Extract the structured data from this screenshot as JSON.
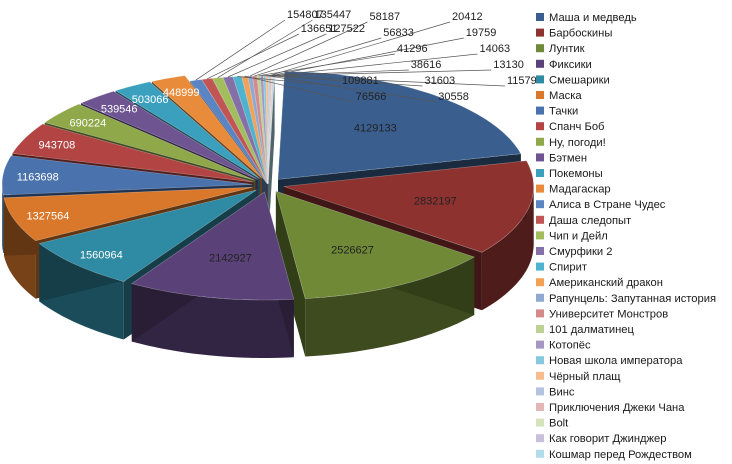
{
  "chart_data": {
    "type": "pie",
    "title": "",
    "legend_position": "right",
    "slices": [
      {
        "label": "Маша и медведь",
        "value": 4129133,
        "color": "#3a5f8f"
      },
      {
        "label": "Барбоскины",
        "value": 2832197,
        "color": "#8e3230"
      },
      {
        "label": "Лунтик",
        "value": 2526627,
        "color": "#6f8936"
      },
      {
        "label": "Фиксики",
        "value": 2142927,
        "color": "#5a4279"
      },
      {
        "label": "Смешарики",
        "value": 1560964,
        "color": "#2f8aa3"
      },
      {
        "label": "Маска",
        "value": 1327564,
        "color": "#d9782b"
      },
      {
        "label": "Тачки",
        "value": 1163698,
        "color": "#4a72ad"
      },
      {
        "label": "Спанч Боб",
        "value": 943708,
        "color": "#b24543"
      },
      {
        "label": "Ну, погоди!",
        "value": 690224,
        "color": "#8ea84a"
      },
      {
        "label": "Бэтмен",
        "value": 539546,
        "color": "#6e5591"
      },
      {
        "label": "Покемоны",
        "value": 503066,
        "color": "#3aa0bd"
      },
      {
        "label": "Мадагаскар",
        "value": 448999,
        "color": "#e88b3a"
      },
      {
        "label": "Алиса в Стране Чудес",
        "value": 154807,
        "color": "#5b84c2"
      },
      {
        "label": "Даша следопыт",
        "value": 136651,
        "color": "#c05553"
      },
      {
        "label": "Чип и Дейл",
        "value": 135447,
        "color": "#a2bd5c"
      },
      {
        "label": "Смурфики 2",
        "value": 127522,
        "color": "#8470a6"
      },
      {
        "label": "Спирит",
        "value": 109881,
        "color": "#4db3cf"
      },
      {
        "label": "Американский дракон",
        "value": 76566,
        "color": "#f3a154"
      },
      {
        "label": "Рапунцель: Запутанная история",
        "value": 58187,
        "color": "#8fa9d3"
      },
      {
        "label": "Университет Монстров",
        "value": 56833,
        "color": "#d48a89"
      },
      {
        "label": "101 далматинец",
        "value": 41296,
        "color": "#bcd193"
      },
      {
        "label": "Котопёс",
        "value": 38616,
        "color": "#a497c2"
      },
      {
        "label": "Новая школа императора",
        "value": 31603,
        "color": "#86c9dc"
      },
      {
        "label": "Чёрный плащ",
        "value": 30558,
        "color": "#f6be8e"
      },
      {
        "label": "Винс",
        "value": 20412,
        "color": "#b3c3e0"
      },
      {
        "label": "Приключения Джеки Чана",
        "value": 19759,
        "color": "#e2b7b6"
      },
      {
        "label": "Bolt",
        "value": 14063,
        "color": "#d5e2bb"
      },
      {
        "label": "Как говорит Джинджер",
        "value": 13130,
        "color": "#c9bfdb"
      },
      {
        "label": "Кошмар перед Рождеством",
        "value": 11579,
        "color": "#b3dceb"
      }
    ]
  }
}
